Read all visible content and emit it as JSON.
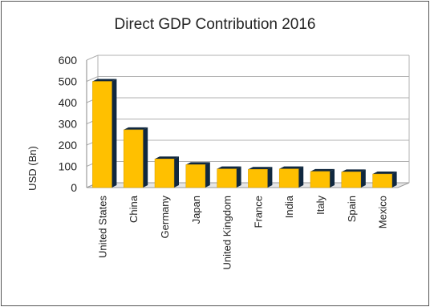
{
  "chart_data": {
    "type": "bar",
    "title": "Direct GDP Contribution 2016",
    "xlabel": "",
    "ylabel": "USD (Bn)",
    "categories": [
      "United States",
      "China",
      "Germany",
      "Japan",
      "United Kingdom",
      "France",
      "India",
      "Italy",
      "Spain",
      "Mexico"
    ],
    "values": [
      500,
      272,
      135,
      108,
      88,
      86,
      88,
      76,
      74,
      64
    ],
    "ylim": [
      0,
      600
    ],
    "yticks": [
      0,
      100,
      200,
      300,
      400,
      500,
      600
    ],
    "grid": true,
    "legend": "none",
    "colors": {
      "bar_front": "#FFC000",
      "bar_side": "#10283F",
      "grid": "#B0B0B0"
    }
  }
}
